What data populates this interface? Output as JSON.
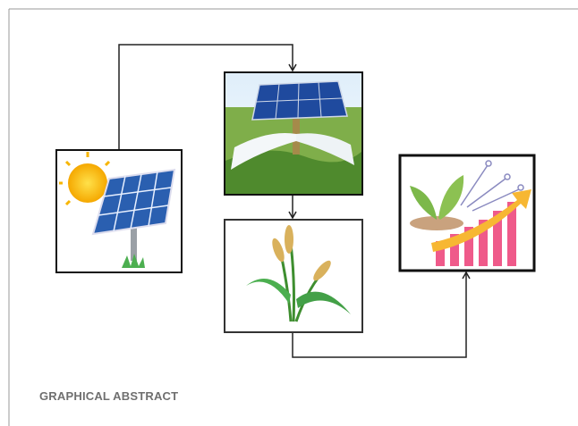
{
  "caption": "GRAPHICAL ABSTRACT"
}
